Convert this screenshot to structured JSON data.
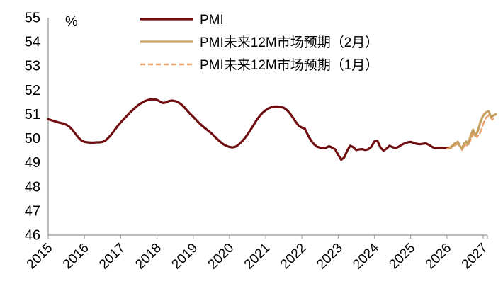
{
  "unit_label": "%",
  "colors": {
    "pmi_line": "#6F0D10",
    "forecast_feb_line": "#C79F5F",
    "forecast_jan_line": "#ECA470",
    "axis": "#A6A6A6",
    "text": "#000000",
    "background": "#FFFFFF"
  },
  "chart_data": {
    "type": "line",
    "title": "",
    "ylabel": "%",
    "xlabel": "",
    "grid": false,
    "legend_position": "top-center",
    "ylim": [
      46,
      55
    ],
    "yticks": [
      46,
      47,
      48,
      49,
      50,
      51,
      52,
      53,
      54,
      55
    ],
    "xticks": [
      2015,
      2016,
      2017,
      2018,
      2019,
      2020,
      2021,
      2022,
      2023,
      2024,
      2025,
      2026,
      2027
    ],
    "legend": [
      {
        "label": "PMI",
        "color": "#6F0D10",
        "style": "solid"
      },
      {
        "label": "PMI未来12M市场预期（2月）",
        "color": "#C79F5F",
        "style": "solid"
      },
      {
        "label": "PMI未来12M市场预期（1月）",
        "color": "#ECA470",
        "style": "dashed"
      }
    ],
    "series": [
      {
        "name": "PMI",
        "color": "#6F0D10",
        "style": "solid",
        "width": 3.2,
        "points": [
          [
            2015.0,
            50.8
          ],
          [
            2015.083,
            50.76
          ],
          [
            2015.167,
            50.72
          ],
          [
            2015.25,
            50.68
          ],
          [
            2015.333,
            50.65
          ],
          [
            2015.417,
            50.62
          ],
          [
            2015.5,
            50.57
          ],
          [
            2015.583,
            50.49
          ],
          [
            2015.667,
            50.36
          ],
          [
            2015.75,
            50.2
          ],
          [
            2015.833,
            50.04
          ],
          [
            2015.917,
            49.92
          ],
          [
            2016.0,
            49.86
          ],
          [
            2016.083,
            49.84
          ],
          [
            2016.167,
            49.83
          ],
          [
            2016.25,
            49.83
          ],
          [
            2016.333,
            49.84
          ],
          [
            2016.417,
            49.84
          ],
          [
            2016.5,
            49.86
          ],
          [
            2016.583,
            49.92
          ],
          [
            2016.667,
            50.04
          ],
          [
            2016.75,
            50.18
          ],
          [
            2016.833,
            50.35
          ],
          [
            2016.917,
            50.52
          ],
          [
            2017.0,
            50.66
          ],
          [
            2017.083,
            50.8
          ],
          [
            2017.167,
            50.93
          ],
          [
            2017.25,
            51.06
          ],
          [
            2017.333,
            51.18
          ],
          [
            2017.417,
            51.3
          ],
          [
            2017.5,
            51.4
          ],
          [
            2017.583,
            51.48
          ],
          [
            2017.667,
            51.55
          ],
          [
            2017.75,
            51.59
          ],
          [
            2017.833,
            51.62
          ],
          [
            2017.917,
            51.62
          ],
          [
            2018.0,
            51.6
          ],
          [
            2018.083,
            51.53
          ],
          [
            2018.167,
            51.47
          ],
          [
            2018.25,
            51.49
          ],
          [
            2018.333,
            51.55
          ],
          [
            2018.417,
            51.57
          ],
          [
            2018.5,
            51.55
          ],
          [
            2018.583,
            51.5
          ],
          [
            2018.667,
            51.42
          ],
          [
            2018.75,
            51.3
          ],
          [
            2018.833,
            51.16
          ],
          [
            2018.917,
            51.02
          ],
          [
            2019.0,
            50.9
          ],
          [
            2019.083,
            50.77
          ],
          [
            2019.167,
            50.64
          ],
          [
            2019.25,
            50.52
          ],
          [
            2019.333,
            50.42
          ],
          [
            2019.417,
            50.32
          ],
          [
            2019.5,
            50.22
          ],
          [
            2019.583,
            50.1
          ],
          [
            2019.667,
            49.97
          ],
          [
            2019.75,
            49.86
          ],
          [
            2019.833,
            49.76
          ],
          [
            2019.917,
            49.69
          ],
          [
            2020.0,
            49.65
          ],
          [
            2020.083,
            49.63
          ],
          [
            2020.167,
            49.66
          ],
          [
            2020.25,
            49.74
          ],
          [
            2020.333,
            49.86
          ],
          [
            2020.417,
            50.0
          ],
          [
            2020.5,
            50.17
          ],
          [
            2020.583,
            50.36
          ],
          [
            2020.667,
            50.56
          ],
          [
            2020.75,
            50.76
          ],
          [
            2020.833,
            50.93
          ],
          [
            2020.917,
            51.07
          ],
          [
            2021.0,
            51.17
          ],
          [
            2021.083,
            51.25
          ],
          [
            2021.167,
            51.3
          ],
          [
            2021.25,
            51.32
          ],
          [
            2021.333,
            51.32
          ],
          [
            2021.417,
            51.3
          ],
          [
            2021.5,
            51.27
          ],
          [
            2021.583,
            51.18
          ],
          [
            2021.667,
            51.04
          ],
          [
            2021.75,
            50.87
          ],
          [
            2021.833,
            50.68
          ],
          [
            2021.917,
            50.52
          ],
          [
            2022.0,
            50.45
          ],
          [
            2022.083,
            50.4
          ],
          [
            2022.167,
            50.14
          ],
          [
            2022.25,
            49.92
          ],
          [
            2022.333,
            49.76
          ],
          [
            2022.417,
            49.66
          ],
          [
            2022.5,
            49.62
          ],
          [
            2022.583,
            49.6
          ],
          [
            2022.667,
            49.62
          ],
          [
            2022.75,
            49.68
          ],
          [
            2022.833,
            49.62
          ],
          [
            2022.917,
            49.55
          ],
          [
            2023.0,
            49.32
          ],
          [
            2023.083,
            49.12
          ],
          [
            2023.167,
            49.22
          ],
          [
            2023.25,
            49.5
          ],
          [
            2023.333,
            49.7
          ],
          [
            2023.417,
            49.64
          ],
          [
            2023.5,
            49.52
          ],
          [
            2023.583,
            49.55
          ],
          [
            2023.667,
            49.56
          ],
          [
            2023.75,
            49.52
          ],
          [
            2023.833,
            49.56
          ],
          [
            2023.917,
            49.66
          ],
          [
            2024.0,
            49.88
          ],
          [
            2024.083,
            49.9
          ],
          [
            2024.167,
            49.62
          ],
          [
            2024.25,
            49.5
          ],
          [
            2024.333,
            49.58
          ],
          [
            2024.417,
            49.7
          ],
          [
            2024.5,
            49.64
          ],
          [
            2024.583,
            49.6
          ],
          [
            2024.667,
            49.66
          ],
          [
            2024.75,
            49.74
          ],
          [
            2024.833,
            49.8
          ],
          [
            2024.917,
            49.84
          ],
          [
            2025.0,
            49.86
          ],
          [
            2025.083,
            49.82
          ],
          [
            2025.167,
            49.78
          ],
          [
            2025.25,
            49.76
          ],
          [
            2025.333,
            49.78
          ],
          [
            2025.417,
            49.8
          ],
          [
            2025.5,
            49.74
          ],
          [
            2025.583,
            49.66
          ],
          [
            2025.667,
            49.6
          ],
          [
            2025.75,
            49.6
          ],
          [
            2025.833,
            49.61
          ],
          [
            2025.917,
            49.6
          ],
          [
            2026.0,
            49.6
          ],
          [
            2026.083,
            49.62
          ]
        ]
      },
      {
        "name": "PMI未来12M市场预期（1月）",
        "color": "#ECA470",
        "style": "dashed",
        "width": 2.4,
        "points": [
          [
            2026.0,
            49.58
          ],
          [
            2026.083,
            49.58
          ],
          [
            2026.17,
            49.66
          ],
          [
            2026.25,
            49.74
          ],
          [
            2026.33,
            49.78
          ],
          [
            2026.42,
            49.52
          ],
          [
            2026.5,
            49.74
          ],
          [
            2026.58,
            49.7
          ],
          [
            2026.67,
            50.0
          ],
          [
            2026.75,
            50.26
          ],
          [
            2026.83,
            50.06
          ],
          [
            2026.92,
            50.24
          ],
          [
            2027.0,
            50.6
          ],
          [
            2027.08,
            50.86
          ],
          [
            2027.17,
            50.98
          ],
          [
            2027.25,
            50.78
          ],
          [
            2027.33,
            50.88
          ]
        ]
      },
      {
        "name": "PMI未来12M市场预期（2月）",
        "color": "#C79F5F",
        "style": "solid",
        "width": 3.2,
        "points": [
          [
            2026.083,
            49.62
          ],
          [
            2026.15,
            49.7
          ],
          [
            2026.22,
            49.8
          ],
          [
            2026.3,
            49.86
          ],
          [
            2026.36,
            49.68
          ],
          [
            2026.42,
            49.58
          ],
          [
            2026.48,
            49.8
          ],
          [
            2026.53,
            49.88
          ],
          [
            2026.58,
            49.76
          ],
          [
            2026.65,
            50.08
          ],
          [
            2026.72,
            50.36
          ],
          [
            2026.78,
            50.12
          ],
          [
            2026.85,
            50.3
          ],
          [
            2026.93,
            50.72
          ],
          [
            2027.0,
            50.95
          ],
          [
            2027.08,
            51.08
          ],
          [
            2027.15,
            51.12
          ],
          [
            2027.22,
            50.88
          ],
          [
            2027.29,
            50.96
          ],
          [
            2027.35,
            51.0
          ]
        ]
      }
    ]
  }
}
